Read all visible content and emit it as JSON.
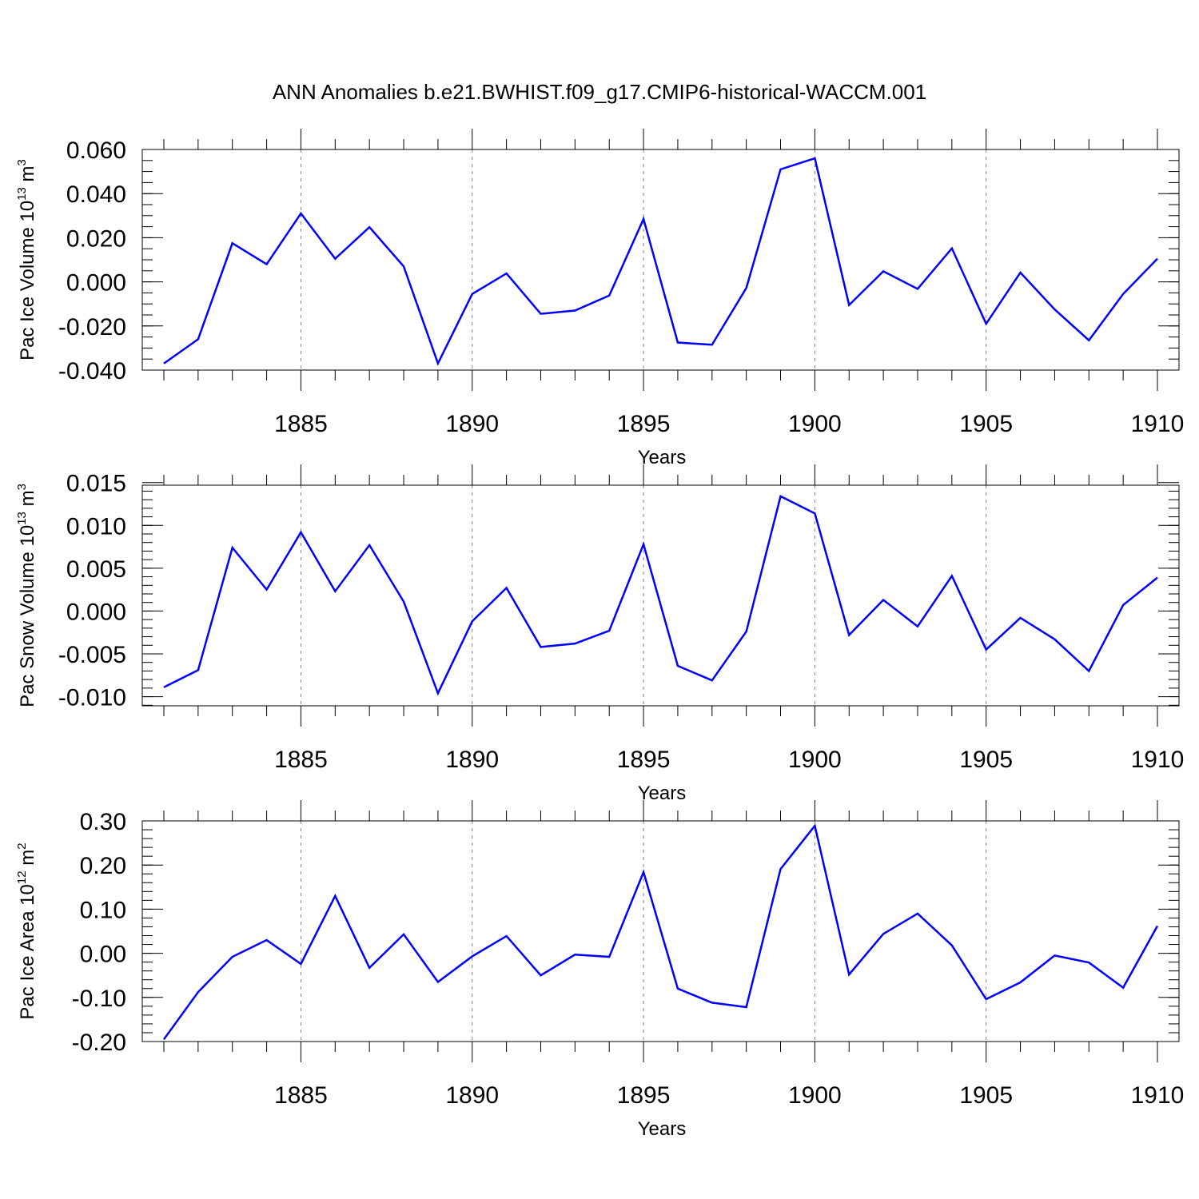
{
  "chart_data": {
    "type": "line",
    "title": "ANN Anomalies b.e21.BWHIST.f09_g17.CMIP6-historical-WACCM.001",
    "x": [
      1881,
      1882,
      1883,
      1884,
      1885,
      1886,
      1887,
      1888,
      1889,
      1890,
      1891,
      1892,
      1893,
      1894,
      1895,
      1896,
      1897,
      1898,
      1899,
      1900,
      1901,
      1902,
      1903,
      1904,
      1905,
      1906,
      1907,
      1908,
      1909,
      1910
    ],
    "xlim": [
      1881,
      1910
    ],
    "xticks": [
      1885,
      1890,
      1895,
      1900,
      1905,
      1910
    ],
    "xtick_labels": [
      "1885",
      "1890",
      "1895",
      "1900",
      "1905",
      "1910"
    ],
    "grid_x": [
      1885,
      1890,
      1895,
      1900,
      1905
    ],
    "line_color": "#0000ff",
    "panels": [
      {
        "ylabel": "Pac Ice Volume 10",
        "ylabel_exp": "13",
        "ylabel_unit": "m",
        "ylabel_unit_exp": "3",
        "xlabel": "Years",
        "ylim": [
          -0.04,
          0.06
        ],
        "yticks": [
          -0.04,
          -0.02,
          0.0,
          0.02,
          0.04,
          0.06
        ],
        "ytick_labels": [
          "-0.040",
          "-0.020",
          "0.000",
          "0.020",
          "0.040",
          "0.060"
        ],
        "minor_step": 0.005,
        "values": [
          -0.037,
          -0.026,
          0.0175,
          0.008,
          0.031,
          0.0105,
          0.0248,
          0.007,
          -0.037,
          -0.0055,
          0.0038,
          -0.0145,
          -0.013,
          -0.0062,
          0.0285,
          -0.0275,
          -0.0285,
          -0.0028,
          0.051,
          0.056,
          -0.0105,
          0.0048,
          -0.0032,
          0.0152,
          -0.019,
          0.0042,
          -0.0125,
          -0.0265,
          -0.0055,
          0.0105
        ]
      },
      {
        "ylabel": "Pac Snow Volume 10",
        "ylabel_exp": "13",
        "ylabel_unit": "m",
        "ylabel_unit_exp": "3",
        "xlabel": "Years",
        "ylim": [
          -0.012,
          0.016
        ],
        "yticks": [
          -0.01,
          -0.005,
          0.0,
          0.005,
          0.01,
          0.015
        ],
        "ytick_labels": [
          "-0.010",
          "-0.005",
          "0.000",
          "0.005",
          "0.010",
          "0.015"
        ],
        "minor_step": 0.001,
        "values": [
          -0.0089,
          -0.0069,
          0.0074,
          0.0025,
          0.0092,
          0.0023,
          0.0077,
          0.0011,
          -0.0096,
          -0.0012,
          0.0027,
          -0.0042,
          -0.0038,
          -0.0023,
          0.0078,
          -0.0064,
          -0.0081,
          -0.0024,
          0.0134,
          0.0114,
          -0.0028,
          0.0013,
          -0.0018,
          0.0041,
          -0.0045,
          -0.0008,
          -0.0033,
          -0.007,
          0.0007,
          0.0039
        ]
      },
      {
        "ylabel": "Pac Ice Area 10",
        "ylabel_exp": "12",
        "ylabel_unit": "m",
        "ylabel_unit_exp": "2",
        "xlabel": "Years",
        "ylim": [
          -0.2,
          0.3
        ],
        "yticks": [
          -0.2,
          -0.1,
          0.0,
          0.1,
          0.2,
          0.3
        ],
        "ytick_labels": [
          "-0.20",
          "-0.10",
          "0.00",
          "0.10",
          "0.20",
          "0.30"
        ],
        "minor_step": 0.02,
        "values": [
          -0.195,
          -0.088,
          -0.008,
          0.03,
          -0.024,
          0.13,
          -0.033,
          0.043,
          -0.065,
          -0.007,
          0.039,
          -0.05,
          -0.003,
          -0.008,
          0.184,
          -0.08,
          -0.112,
          -0.122,
          0.191,
          0.289,
          -0.048,
          0.044,
          0.09,
          0.018,
          -0.104,
          -0.066,
          -0.005,
          -0.021,
          -0.078,
          0.062
        ]
      }
    ]
  }
}
